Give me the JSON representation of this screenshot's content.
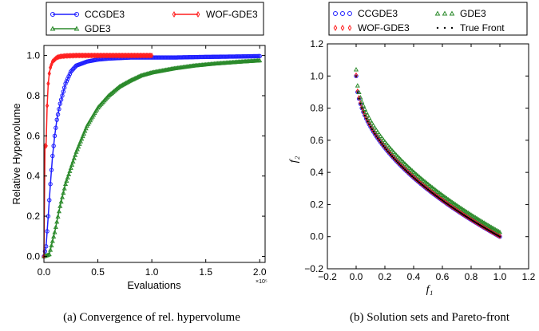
{
  "chart_data": [
    {
      "type": "line",
      "xlabel": "Evaluations",
      "ylabel": "Relative Hypervolume",
      "xlim": [
        0.0,
        2.05
      ],
      "ylim": [
        -0.03,
        1.05
      ],
      "x_ticks": [
        "0.0",
        "0.5",
        "1.0",
        "1.5",
        "2.0"
      ],
      "y_ticks": [
        "0.0",
        "0.2",
        "0.4",
        "0.6",
        "0.8",
        "1.0"
      ],
      "x_multiplier": "×10⁵",
      "legend_position": "top",
      "caption": "(a) Convergence of rel. hypervolume",
      "series": [
        {
          "name": "CCGDE3",
          "color": "#1f1fff",
          "marker": "circle",
          "x": [
            0.0,
            0.02,
            0.04,
            0.06,
            0.08,
            0.1,
            0.12,
            0.15,
            0.2,
            0.25,
            0.3,
            0.4,
            0.5,
            0.6,
            0.8,
            1.0,
            1.2,
            1.5,
            1.8,
            2.0
          ],
          "y": [
            0.0,
            0.05,
            0.2,
            0.36,
            0.5,
            0.6,
            0.68,
            0.76,
            0.86,
            0.92,
            0.95,
            0.97,
            0.98,
            0.985,
            0.99,
            0.99,
            0.99,
            0.993,
            0.995,
            0.997
          ]
        },
        {
          "name": "GDE3",
          "color": "#2b8a2b",
          "marker": "triangle",
          "x": [
            0.0,
            0.05,
            0.1,
            0.15,
            0.2,
            0.3,
            0.4,
            0.5,
            0.6,
            0.7,
            0.8,
            0.9,
            1.0,
            1.2,
            1.4,
            1.6,
            1.8,
            2.0
          ],
          "y": [
            0.0,
            0.01,
            0.12,
            0.25,
            0.36,
            0.52,
            0.65,
            0.74,
            0.8,
            0.845,
            0.875,
            0.9,
            0.915,
            0.935,
            0.95,
            0.96,
            0.968,
            0.975
          ]
        },
        {
          "name": "WOF-GDE3",
          "color": "#ff1f1f",
          "marker": "diamond",
          "x": [
            0.0,
            0.01,
            0.02,
            0.03,
            0.04,
            0.05,
            0.06,
            0.08,
            0.1,
            0.12,
            0.15,
            0.2,
            0.25,
            0.3,
            0.5,
            0.8,
            1.0
          ],
          "y": [
            0.0,
            0.55,
            0.55,
            0.75,
            0.86,
            0.91,
            0.94,
            0.97,
            0.98,
            0.99,
            0.995,
            0.998,
            0.999,
            1.0,
            1.0,
            1.0,
            1.0
          ]
        }
      ]
    },
    {
      "type": "scatter",
      "xlabel": "f₁",
      "ylabel": "f₂",
      "xlim": [
        -0.2,
        1.2
      ],
      "ylim": [
        -0.2,
        1.2
      ],
      "x_ticks": [
        "−0.2",
        "0.0",
        "0.2",
        "0.4",
        "0.6",
        "0.8",
        "1.0",
        "1.2"
      ],
      "y_ticks": [
        "−0.2",
        "0.0",
        "0.2",
        "0.4",
        "0.6",
        "0.8",
        "1.0",
        "1.2"
      ],
      "legend_position": "top",
      "caption": "(b) Solution sets and Pareto-front",
      "series": [
        {
          "name": "CCGDE3",
          "color": "#1f1fff",
          "marker": "circle",
          "curve": "1 - sqrt(f1)",
          "offset": 0.0
        },
        {
          "name": "WOF-GDE3",
          "color": "#ff1f1f",
          "marker": "diamond",
          "curve": "1 - sqrt(f1)",
          "offset": 0.005
        },
        {
          "name": "GDE3",
          "color": "#2b8a2b",
          "marker": "triangle",
          "curve": "1 - sqrt(f1)",
          "offset": 0.04
        },
        {
          "name": "True Front",
          "color": "#000000",
          "marker": "dot",
          "curve": "1 - sqrt(f1)",
          "offset": 0.0
        }
      ]
    }
  ]
}
